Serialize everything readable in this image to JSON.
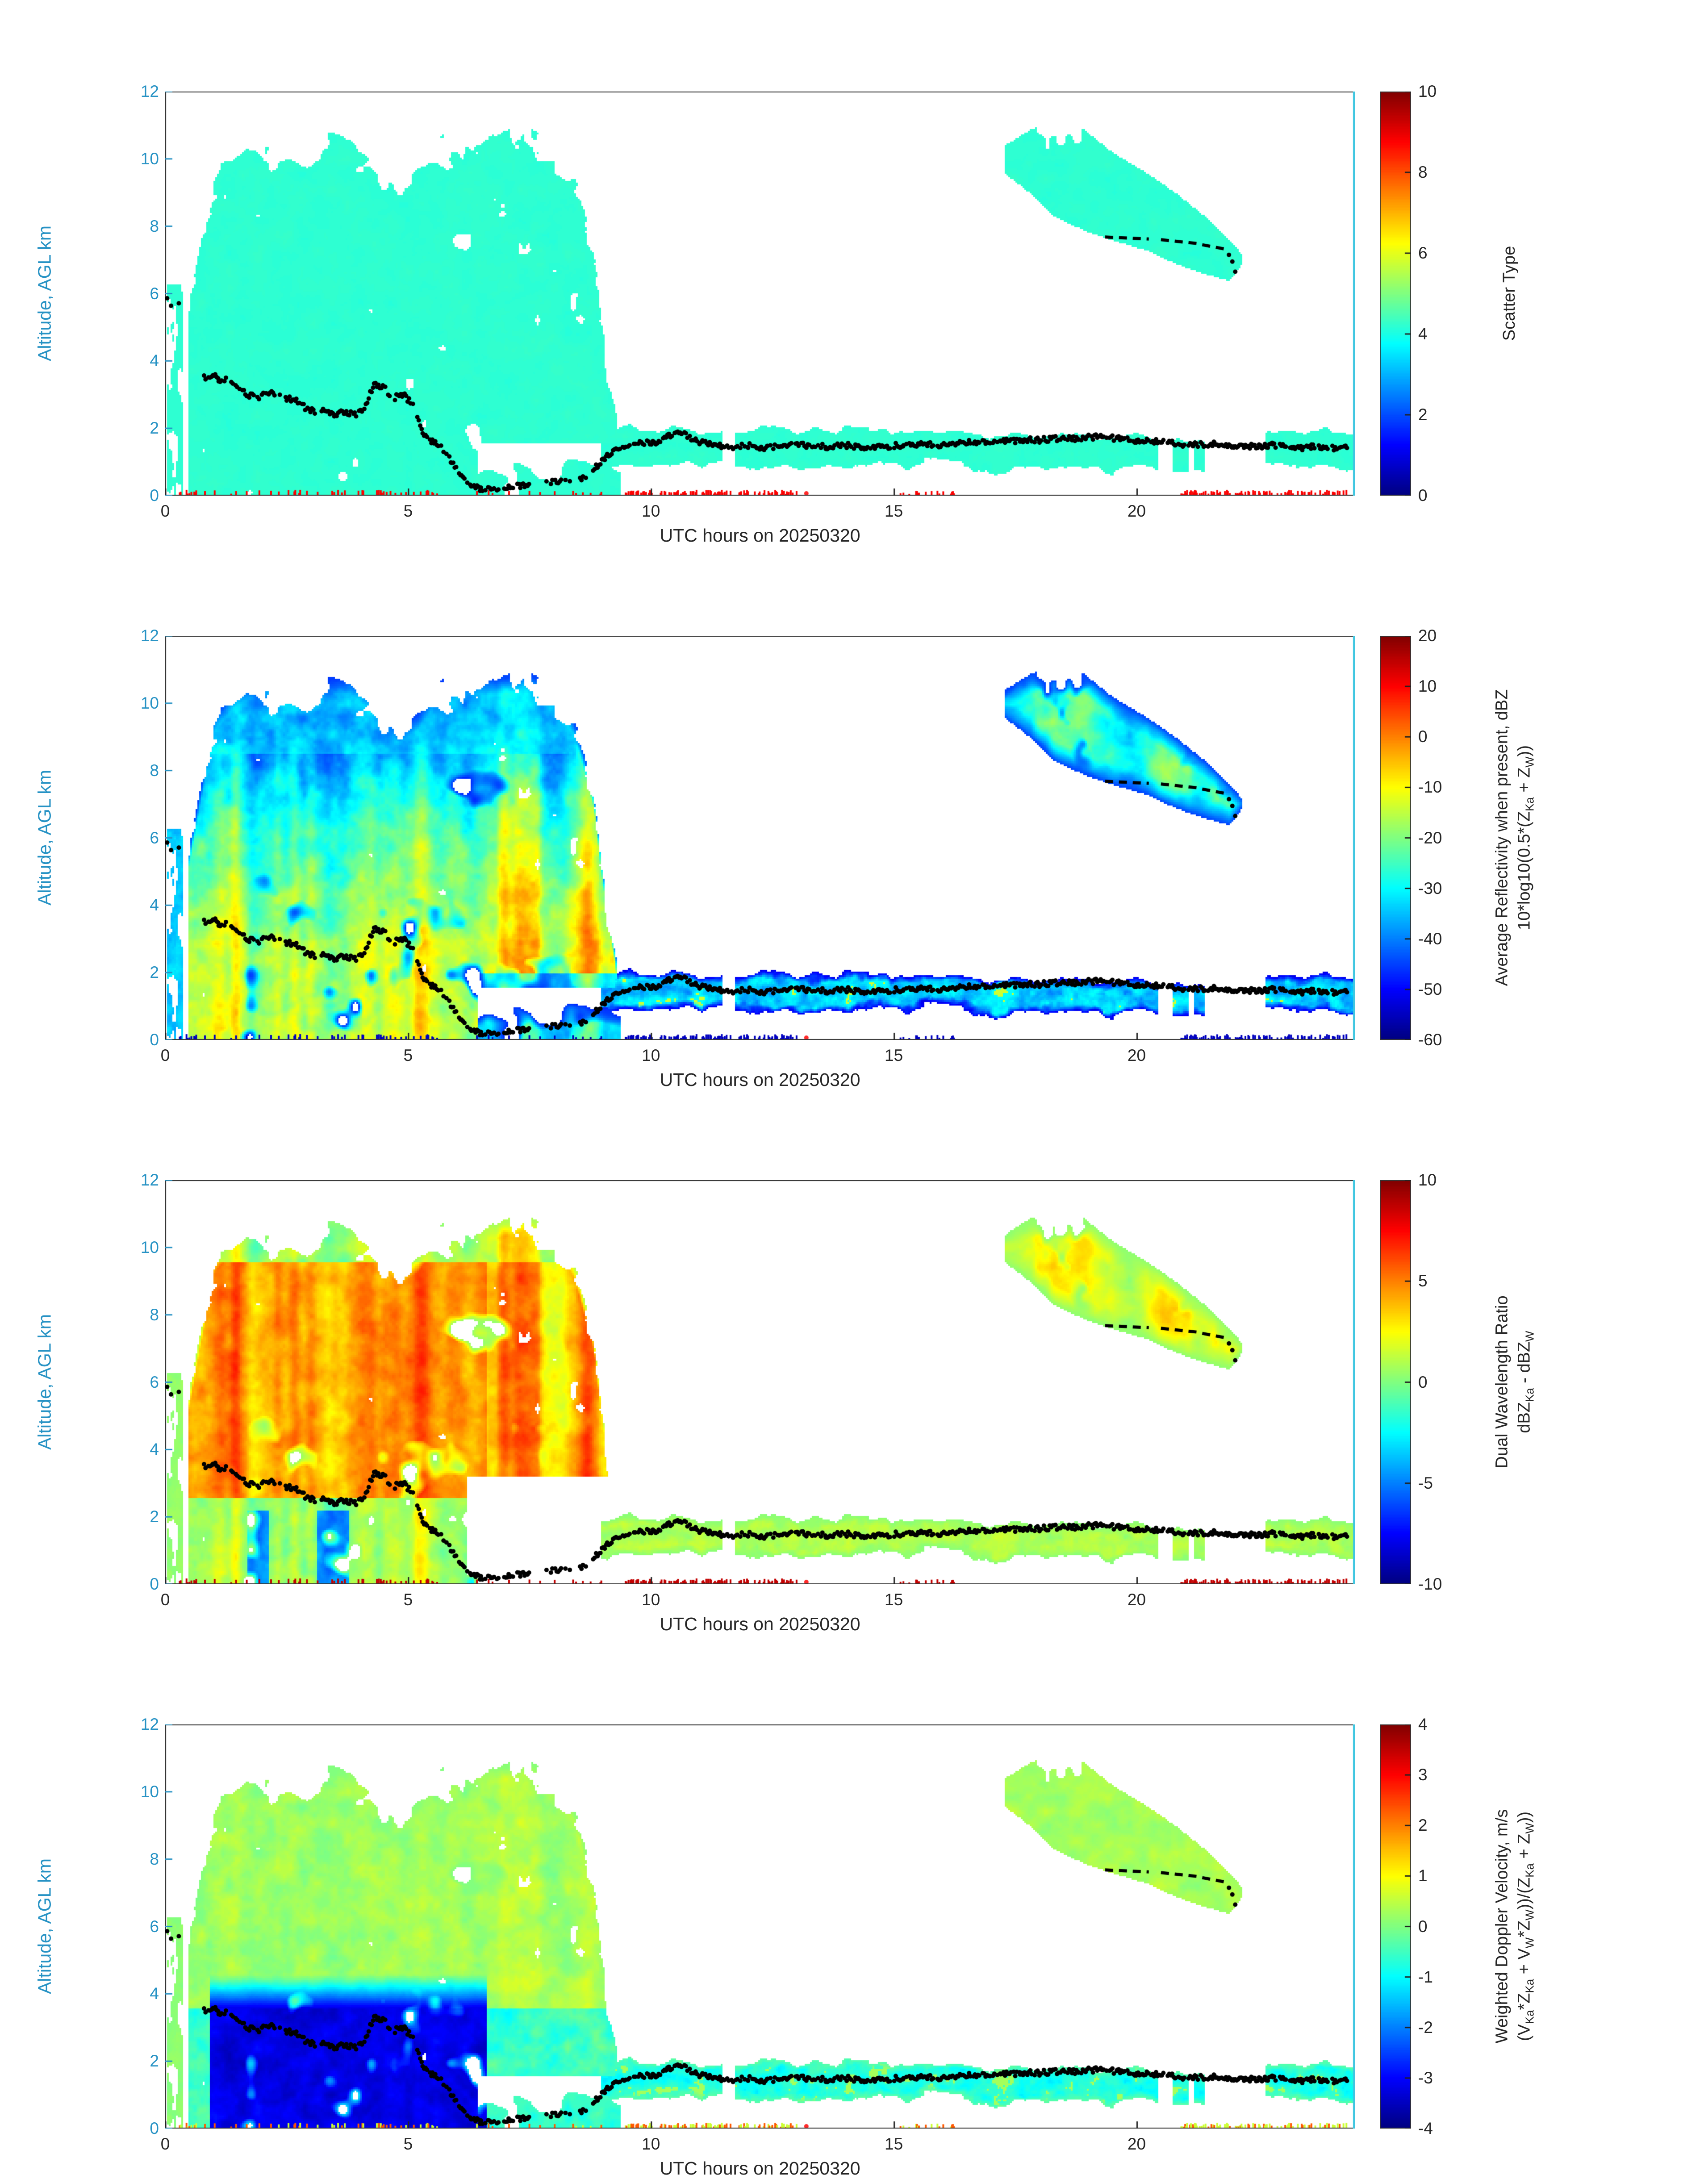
{
  "axes": {
    "x_label": "UTC hours on 20250320",
    "x_ticks": [
      0,
      5,
      10,
      15,
      20
    ],
    "x_range": [
      0,
      24.5
    ],
    "y_label": "Altitude, AGL km",
    "y_ticks": [
      0,
      2,
      4,
      6,
      8,
      10,
      12
    ],
    "y_range": [
      0,
      12
    ]
  },
  "colors": {
    "y_axis_accent": "#2692c4",
    "right_spine": "#3fc6e0",
    "tick_text": "#262626",
    "dot_color": "#000000",
    "surface_marker_red": "#ff2a2a",
    "palette": "jet"
  },
  "panels": [
    {
      "name": "scatter-type",
      "field": "scatter",
      "cb_label": [
        "Scatter Type"
      ],
      "cb_ticks": [
        10,
        8,
        6,
        4,
        2,
        0
      ],
      "cb_range": [
        0,
        10
      ]
    },
    {
      "name": "reflectivity",
      "field": "dbz",
      "cb_label": [
        "Average Reflectivity when present, dBZ",
        "10*log10(0.5*(Z_{Ka} + Z_{W}))"
      ],
      "cb_ticks": [
        20,
        10,
        0,
        -10,
        -20,
        -30,
        -40,
        -50,
        -60
      ],
      "cb_range": [
        -60,
        20
      ]
    },
    {
      "name": "dual-wavelength-ratio",
      "field": "dwr",
      "cb_label": [
        "Dual Wavelength Ratio",
        "dBZ_{Ka} - dBZ_{W}"
      ],
      "cb_ticks": [
        10,
        5,
        0,
        -5,
        -10
      ],
      "cb_range": [
        -10,
        10
      ]
    },
    {
      "name": "doppler-velocity",
      "field": "vel",
      "cb_label": [
        "Weighted Doppler Velocity, m/s",
        "(V_{Ka}*Z_{Ka} + V_{W}*Z_{W}))/(Z_{Ka} + Z_{W}))"
      ],
      "cb_ticks": [
        4,
        3,
        2,
        1,
        0,
        -1,
        -2,
        -3,
        -4
      ],
      "cb_range": [
        -4,
        4
      ]
    }
  ],
  "chart_data": {
    "type": "heatmap",
    "x": {
      "label": "UTC hours on 20250320",
      "range": [
        0,
        24.5
      ],
      "ticks": [
        0,
        5,
        10,
        15,
        20
      ]
    },
    "y": {
      "label": "Altitude, AGL km",
      "range": [
        0,
        12
      ],
      "ticks": [
        0,
        2,
        4,
        6,
        8,
        10,
        12
      ]
    },
    "panel_summaries": [
      {
        "panel": "Scatter Type",
        "range": [
          0,
          10
        ],
        "features": [
          {
            "region": "main-storm",
            "t": [
              0.45,
              9.35
            ],
            "alt": [
              0,
              11
            ],
            "value": 4.2,
            "appearance": "uniform turquoise cloud mass with white holes"
          },
          {
            "region": "low-band",
            "t": [
              9,
              24.45
            ],
            "alt": [
              0.6,
              2.3
            ],
            "value": 4.2
          },
          {
            "region": "upper-right-cloud",
            "t": [
              17.25,
              22.15
            ],
            "alt": [
              6.4,
              11.1
            ],
            "value": 4.2
          },
          {
            "region": "surface-specks",
            "alt": [
              0,
              0.2
            ],
            "value": 8.8,
            "appearance": "red flecks at ground"
          }
        ]
      },
      {
        "panel": "Average Reflectivity when present, dBZ",
        "range": [
          -60,
          20
        ],
        "features": [
          {
            "region": "main-storm",
            "t": [
              0.45,
              9.35
            ],
            "alt": [
              0,
              11
            ],
            "value_range": [
              -47,
              15
            ],
            "appearance": "blue rims, yellow-orange interior, red vertical streak cores t 1-6.5 below 7 km"
          },
          {
            "region": "low-band",
            "t": [
              9,
              24.45
            ],
            "alt": [
              0.6,
              2.3
            ],
            "value_range": [
              -52,
              -12
            ],
            "appearance": "navy edged cyan patches"
          },
          {
            "region": "upper-right-cloud",
            "t": [
              17.25,
              22.15
            ],
            "alt": [
              6.4,
              11.1
            ],
            "value_range": [
              -45,
              -10
            ]
          },
          {
            "region": "surface-specks",
            "value": -55
          }
        ]
      },
      {
        "panel": "Dual Wavelength Ratio",
        "range": [
          -10,
          10
        ],
        "features": [
          {
            "region": "main-storm",
            "t": [
              0.45,
              9.35
            ],
            "alt": [
              2.5,
              10
            ],
            "value_range": [
              2,
              9.5
            ],
            "appearance": "dominant red / dark-red vertical streaks"
          },
          {
            "region": "main-storm-low",
            "alt": [
              0,
              2.5
            ],
            "value_range": [
              -4,
              3
            ],
            "appearance": "yellow with occasional cyan columns"
          },
          {
            "region": "low-band",
            "t": [
              9,
              24.45
            ],
            "alt": [
              0.6,
              2.3
            ],
            "value_range": [
              -1,
              2.5
            ],
            "appearance": "yellow-green"
          },
          {
            "region": "upper-right-cloud",
            "t": [
              17.25,
              22.15
            ],
            "value_range": [
              0,
              5
            ]
          },
          {
            "region": "surface-specks",
            "value": 8.7
          }
        ]
      },
      {
        "panel": "Weighted Doppler Velocity, m/s",
        "range": [
          -4,
          4
        ],
        "features": [
          {
            "region": "main-storm-aloft",
            "alt": [
              4,
              11
            ],
            "value_range": [
              -0.3,
              1
            ],
            "appearance": "green-yellow"
          },
          {
            "region": "main-storm-low",
            "t": [
              1,
              6.6
            ],
            "alt": [
              0,
              3.6
            ],
            "value_range": [
              -3.8,
              -2.6
            ],
            "appearance": "deep blue block"
          },
          {
            "region": "low-band",
            "t": [
              9,
              24.45
            ],
            "value_range": [
              -1.5,
              0.4
            ],
            "appearance": "cyan"
          },
          {
            "region": "upper-right-cloud",
            "value_range": [
              0,
              0.7
            ]
          }
        ]
      }
    ],
    "storm_top": [
      [
        0.45,
        5.5
      ],
      [
        0.7,
        7.5
      ],
      [
        1.0,
        9.8
      ],
      [
        1.5,
        10.6
      ],
      [
        2.2,
        10.9
      ],
      [
        2.8,
        10.3
      ],
      [
        3.2,
        10.8
      ],
      [
        3.8,
        10.9
      ],
      [
        4.3,
        10.2
      ],
      [
        4.8,
        9.4
      ],
      [
        5.2,
        9.8
      ],
      [
        5.6,
        10.7
      ],
      [
        6.2,
        10.9
      ],
      [
        6.8,
        10.8
      ],
      [
        7.4,
        11.0
      ],
      [
        8.0,
        10.6
      ],
      [
        8.4,
        9.6
      ],
      [
        8.8,
        7.5
      ],
      [
        9.05,
        4.5
      ],
      [
        9.35,
        1.8
      ]
    ],
    "upper_top": [
      [
        17.25,
        10.4
      ],
      [
        17.8,
        10.9
      ],
      [
        18.3,
        11.1
      ],
      [
        18.9,
        10.9
      ],
      [
        19.5,
        10.2
      ],
      [
        20.2,
        9.6
      ],
      [
        20.8,
        9.0
      ],
      [
        21.4,
        8.3
      ],
      [
        21.9,
        7.6
      ],
      [
        22.15,
        7.2
      ]
    ],
    "upper_bot": [
      [
        17.25,
        9.6
      ],
      [
        17.8,
        9.0
      ],
      [
        18.3,
        8.3
      ],
      [
        18.9,
        7.9
      ],
      [
        19.5,
        7.6
      ],
      [
        20.2,
        7.3
      ],
      [
        20.8,
        6.9
      ],
      [
        21.4,
        6.6
      ],
      [
        21.9,
        6.4
      ],
      [
        22.15,
        6.9
      ]
    ],
    "track": [
      [
        0.04,
        5.9
      ],
      [
        0.12,
        5.6
      ],
      [
        0.2,
        5.5
      ],
      [
        0.28,
        5.7
      ],
      [
        0.35,
        5.6
      ],
      [
        0.8,
        3.5
      ],
      [
        1.0,
        3.6
      ],
      [
        1.1,
        3.4
      ],
      [
        1.3,
        3.5
      ],
      [
        1.5,
        3.2
      ],
      [
        1.7,
        3.0
      ],
      [
        1.9,
        2.9
      ],
      [
        2.1,
        3.1
      ],
      [
        2.3,
        3.0
      ],
      [
        2.5,
        2.9
      ],
      [
        2.7,
        2.8
      ],
      [
        2.9,
        2.6
      ],
      [
        3.1,
        2.5
      ],
      [
        3.3,
        2.5
      ],
      [
        3.5,
        2.4
      ],
      [
        3.7,
        2.5
      ],
      [
        3.9,
        2.4
      ],
      [
        4.1,
        2.6
      ],
      [
        4.3,
        3.3
      ],
      [
        4.5,
        3.2
      ],
      [
        4.7,
        2.9
      ],
      [
        4.9,
        3.0
      ],
      [
        5.1,
        2.7
      ],
      [
        5.3,
        1.9
      ],
      [
        5.5,
        1.6
      ],
      [
        5.7,
        1.4
      ],
      [
        5.9,
        1.0
      ],
      [
        6.1,
        0.6
      ],
      [
        6.3,
        0.3
      ],
      [
        6.5,
        0.2
      ],
      [
        6.8,
        0.2
      ],
      [
        7.1,
        0.3
      ],
      [
        7.4,
        0.3
      ],
      [
        7.7,
        0.35
      ],
      [
        8.0,
        0.4
      ],
      [
        8.3,
        0.45
      ],
      [
        8.6,
        0.5
      ],
      [
        8.9,
        0.9
      ],
      [
        9.1,
        1.2
      ],
      [
        9.3,
        1.4
      ],
      [
        9.5,
        1.5
      ],
      [
        9.8,
        1.55
      ],
      [
        10.1,
        1.6
      ],
      [
        10.4,
        1.8
      ],
      [
        10.6,
        1.9
      ],
      [
        10.8,
        1.7
      ],
      [
        11.0,
        1.6
      ],
      [
        11.3,
        1.5
      ],
      [
        11.6,
        1.45
      ],
      [
        12.0,
        1.5
      ],
      [
        12.4,
        1.4
      ],
      [
        12.8,
        1.5
      ],
      [
        13.2,
        1.5
      ],
      [
        13.6,
        1.45
      ],
      [
        14.0,
        1.5
      ],
      [
        14.4,
        1.4
      ],
      [
        14.8,
        1.45
      ],
      [
        15.2,
        1.5
      ],
      [
        15.6,
        1.55
      ],
      [
        16.0,
        1.5
      ],
      [
        16.4,
        1.55
      ],
      [
        16.8,
        1.6
      ],
      [
        17.2,
        1.6
      ],
      [
        17.6,
        1.65
      ],
      [
        18.0,
        1.65
      ],
      [
        18.4,
        1.7
      ],
      [
        18.8,
        1.7
      ],
      [
        19.2,
        1.75
      ],
      [
        19.6,
        1.7
      ],
      [
        20.0,
        1.65
      ],
      [
        20.4,
        1.6
      ],
      [
        20.8,
        1.55
      ],
      [
        21.2,
        1.5
      ],
      [
        21.6,
        1.55
      ],
      [
        22.0,
        1.5
      ],
      [
        22.4,
        1.45
      ],
      [
        22.8,
        1.5
      ],
      [
        23.2,
        1.4
      ],
      [
        23.6,
        1.45
      ],
      [
        24.0,
        1.4
      ],
      [
        24.35,
        1.45
      ]
    ],
    "upper_dashes": [
      [
        19.35,
        20.25,
        7.68,
        7.62
      ],
      [
        20.5,
        21.3,
        7.6,
        7.48
      ],
      [
        21.35,
        21.9,
        7.45,
        7.3
      ]
    ],
    "upper_dots": [
      [
        21.9,
        7.15
      ],
      [
        21.97,
        6.95
      ],
      [
        22.03,
        6.65
      ]
    ],
    "surface_specks": [
      [
        0.1,
        5.6,
        0.18
      ],
      [
        6.0,
        9.0,
        0.08
      ],
      [
        9.4,
        13.0,
        0.5
      ],
      [
        14.9,
        16.6,
        0.22
      ],
      [
        20.9,
        24.35,
        0.45
      ]
    ],
    "red_axis_marker": {
      "t": 13.2,
      "alt": 0.05
    }
  }
}
